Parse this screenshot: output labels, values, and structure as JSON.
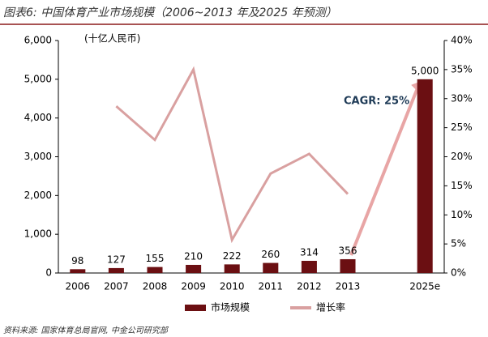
{
  "chart_data": {
    "type": "bar",
    "title": "图表6: 中国体育产业市场规模（2006~2013 年及2025 年预测）",
    "y_label": "(十亿人民币)",
    "categories": [
      "2006",
      "2007",
      "2008",
      "2009",
      "2010",
      "2011",
      "2012",
      "2013",
      null,
      "2025e"
    ],
    "series": [
      {
        "name": "市场规模",
        "type": "bar",
        "color": "#6b0f12",
        "values": [
          98,
          127,
          155,
          210,
          222,
          260,
          314,
          356,
          null,
          5000
        ],
        "value_labels": [
          "98",
          "127",
          "155",
          "210",
          "222",
          "260",
          "314",
          "356",
          null,
          "5,000"
        ]
      },
      {
        "name": "增长率",
        "type": "line",
        "axis": "y2",
        "color": "#d9a0a0",
        "values": [
          null,
          28.7,
          22.9,
          35.0,
          5.7,
          17.1,
          20.5,
          13.6,
          null,
          null
        ]
      }
    ],
    "ylim": [
      0,
      6000
    ],
    "yticks": [
      {
        "value": 0,
        "label": "0"
      },
      {
        "value": 1000,
        "label": "1,000"
      },
      {
        "value": 2000,
        "label": "2,000"
      },
      {
        "value": 3000,
        "label": "3,000"
      },
      {
        "value": 4000,
        "label": "4,000"
      },
      {
        "value": 5000,
        "label": "5,000"
      },
      {
        "value": 6000,
        "label": "6,000"
      }
    ],
    "y2lim": [
      0,
      40
    ],
    "y2ticks": [
      {
        "value": 0,
        "label": "0%"
      },
      {
        "value": 5,
        "label": "5%"
      },
      {
        "value": 10,
        "label": "10%"
      },
      {
        "value": 15,
        "label": "15%"
      },
      {
        "value": 20,
        "label": "20%"
      },
      {
        "value": 25,
        "label": "25%"
      },
      {
        "value": 30,
        "label": "30%"
      },
      {
        "value": 35,
        "label": "35%"
      },
      {
        "value": 40,
        "label": "40%"
      }
    ],
    "annotation": "CAGR: 25%",
    "source": "资料来源: 国家体育总局官网, 中金公司研究部",
    "legend": "bottom"
  }
}
